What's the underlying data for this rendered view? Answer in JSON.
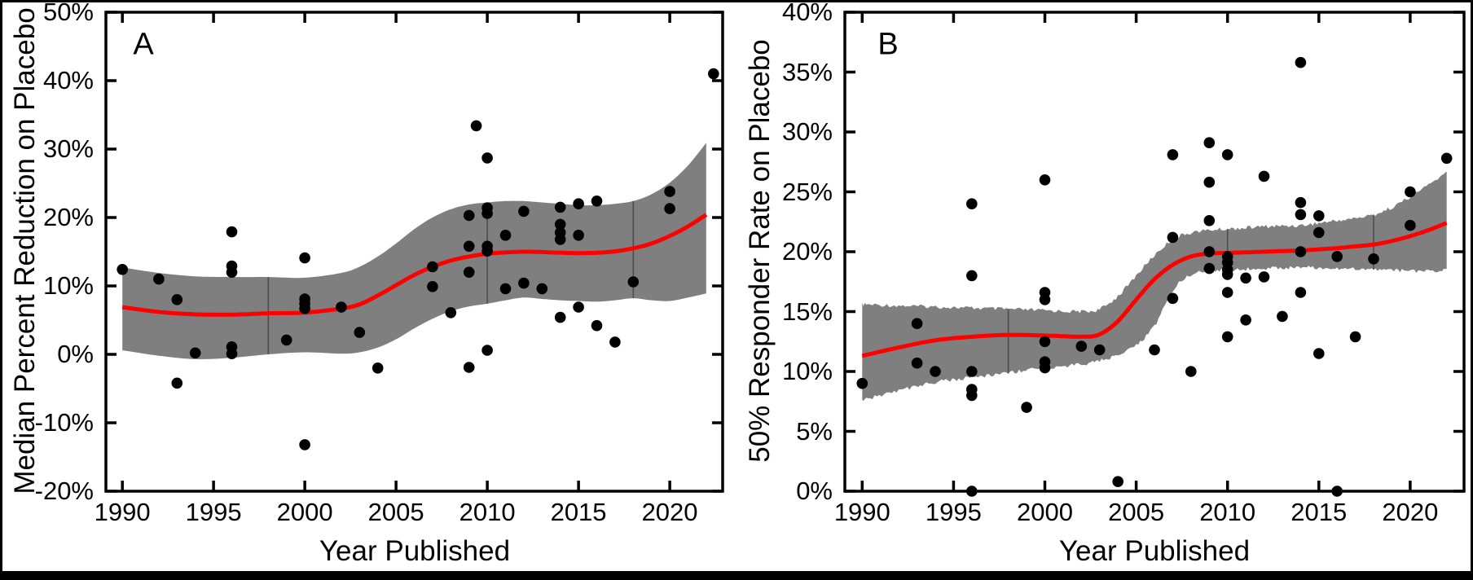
{
  "figure": {
    "background": "#ffffff",
    "frame_color": "#000000",
    "bottom_bar_color": "#000000"
  },
  "chart_data": [
    {
      "type": "scatter",
      "panel_label": "A",
      "xlabel": "Year Published",
      "ylabel": "Median Percent Reduction on Placebo",
      "xlim": [
        1989.1,
        2022.9
      ],
      "ylim": [
        -20,
        50
      ],
      "grid": false,
      "legend": "none",
      "xticks": [
        1990,
        1995,
        2000,
        2005,
        2010,
        2015,
        2020
      ],
      "xtick_labels": [
        "1990",
        "1995",
        "2000",
        "2005",
        "2010",
        "2015",
        "2020"
      ],
      "yticks": [
        -20,
        -10,
        0,
        10,
        20,
        30,
        40,
        50
      ],
      "ytick_labels": [
        "-20%",
        "-10%",
        "0%",
        "10%",
        "20%",
        "30%",
        "40%",
        "50%"
      ],
      "colors": {
        "points": "#000000",
        "trend": "#ff0000",
        "band": "#7f7f7f",
        "knots": "#4d4d4d"
      },
      "points": [
        [
          1990,
          12.4
        ],
        [
          1992,
          11.0
        ],
        [
          1993,
          8.0
        ],
        [
          1993,
          -4.2
        ],
        [
          1994,
          0.2
        ],
        [
          1996,
          17.9
        ],
        [
          1996,
          12.9
        ],
        [
          1996,
          12.0
        ],
        [
          1996,
          1.1
        ],
        [
          1996,
          0.1
        ],
        [
          1999,
          2.1
        ],
        [
          2000,
          14.1
        ],
        [
          2000,
          8.1
        ],
        [
          2000,
          7.4
        ],
        [
          2000,
          6.7
        ],
        [
          2000,
          -13.2
        ],
        [
          2002,
          6.9
        ],
        [
          2003,
          3.2
        ],
        [
          2004,
          -2.0
        ],
        [
          2007,
          12.8
        ],
        [
          2007,
          9.9
        ],
        [
          2008,
          6.1
        ],
        [
          2009.4,
          33.4
        ],
        [
          2009,
          20.3
        ],
        [
          2009,
          15.8
        ],
        [
          2009,
          12.0
        ],
        [
          2009,
          -1.9
        ],
        [
          2010,
          28.7
        ],
        [
          2010,
          21.4
        ],
        [
          2010,
          20.6
        ],
        [
          2010,
          15.8
        ],
        [
          2010,
          15.1
        ],
        [
          2010,
          0.6
        ],
        [
          2011,
          17.4
        ],
        [
          2011,
          9.6
        ],
        [
          2012,
          20.9
        ],
        [
          2012,
          10.4
        ],
        [
          2013,
          9.6
        ],
        [
          2014,
          21.5
        ],
        [
          2014,
          19.0
        ],
        [
          2014,
          17.8
        ],
        [
          2014,
          16.8
        ],
        [
          2014,
          5.4
        ],
        [
          2015,
          22.0
        ],
        [
          2015,
          17.4
        ],
        [
          2015,
          6.9
        ],
        [
          2016,
          22.4
        ],
        [
          2016,
          4.2
        ],
        [
          2017,
          1.8
        ],
        [
          2018,
          10.6
        ],
        [
          2020,
          23.8
        ],
        [
          2020,
          21.3
        ],
        [
          2022.4,
          41.0
        ]
      ],
      "trend": {
        "x": [
          1990,
          1992,
          1994,
          1996,
          1998,
          2000,
          2002,
          2003,
          2004,
          2005,
          2006,
          2007,
          2008,
          2009,
          2010,
          2011,
          2012,
          2013,
          2014,
          2015,
          2016,
          2017,
          2018,
          2019,
          2020,
          2021,
          2022
        ],
        "y": [
          6.9,
          6.2,
          5.85,
          5.8,
          6.0,
          6.1,
          6.7,
          7.3,
          8.6,
          10.1,
          11.6,
          12.8,
          13.7,
          14.3,
          14.7,
          14.9,
          15.0,
          14.95,
          14.85,
          14.8,
          14.85,
          15.05,
          15.5,
          16.2,
          17.3,
          18.7,
          20.4
        ]
      },
      "band": {
        "x": [
          1990,
          1992,
          1994,
          1996,
          1998,
          2000,
          2002,
          2003,
          2004,
          2005,
          2006,
          2007,
          2008,
          2009,
          2010,
          2011,
          2012,
          2013,
          2014,
          2015,
          2016,
          2017,
          2018,
          2019,
          2020,
          2021,
          2022
        ],
        "upper": [
          12.7,
          11.9,
          11.4,
          11.3,
          11.3,
          11.2,
          11.9,
          12.8,
          14.3,
          16.2,
          18.3,
          20.0,
          21.2,
          21.9,
          22.2,
          22.4,
          22.4,
          22.2,
          22.0,
          21.8,
          21.8,
          22.0,
          22.4,
          23.4,
          25.1,
          27.6,
          30.9
        ],
        "lower": [
          0.6,
          -0.2,
          -0.7,
          -0.5,
          0.0,
          0.3,
          0.1,
          0.3,
          1.0,
          2.2,
          3.8,
          5.2,
          6.3,
          7.0,
          7.4,
          7.9,
          8.3,
          8.1,
          7.9,
          7.8,
          7.7,
          7.9,
          8.2,
          7.9,
          7.8,
          8.3,
          8.9
        ],
        "ragged": false
      },
      "knot_lines": [
        1998,
        2010,
        2018
      ]
    },
    {
      "type": "scatter",
      "panel_label": "B",
      "xlabel": "Year Published",
      "ylabel": "50% Responder Rate on Placebo",
      "xlim": [
        1989.05,
        2022.95
      ],
      "ylim": [
        0,
        40
      ],
      "grid": false,
      "legend": "none",
      "xticks": [
        1990,
        1995,
        2000,
        2005,
        2010,
        2015,
        2020
      ],
      "xtick_labels": [
        "1990",
        "1995",
        "2000",
        "2005",
        "2010",
        "2015",
        "2020"
      ],
      "yticks": [
        0,
        5,
        10,
        15,
        20,
        25,
        30,
        35,
        40
      ],
      "ytick_labels": [
        "0%",
        "5%",
        "10%",
        "15%",
        "20%",
        "25%",
        "30%",
        "35%",
        "40%"
      ],
      "colors": {
        "points": "#000000",
        "trend": "#ff0000",
        "band": "#7f7f7f",
        "knots": "#4d4d4d"
      },
      "points": [
        [
          1990,
          9.0
        ],
        [
          1993,
          14.0
        ],
        [
          1993,
          10.7
        ],
        [
          1994,
          10.0
        ],
        [
          1996,
          24.0
        ],
        [
          1996,
          18.0
        ],
        [
          1996,
          10.0
        ],
        [
          1996,
          8.5
        ],
        [
          1996,
          8.0
        ],
        [
          1996,
          0.0
        ],
        [
          1999,
          7.0
        ],
        [
          2000,
          26.0
        ],
        [
          2000,
          16.6
        ],
        [
          2000,
          16.0
        ],
        [
          2000,
          12.5
        ],
        [
          2000,
          10.8
        ],
        [
          2000,
          10.3
        ],
        [
          2002,
          12.1
        ],
        [
          2003,
          11.8
        ],
        [
          2004,
          0.8
        ],
        [
          2006,
          11.8
        ],
        [
          2007,
          28.1
        ],
        [
          2007,
          21.2
        ],
        [
          2007,
          16.1
        ],
        [
          2008,
          10.0
        ],
        [
          2009,
          29.1
        ],
        [
          2009,
          25.8
        ],
        [
          2009,
          22.6
        ],
        [
          2009,
          20.0
        ],
        [
          2009,
          18.6
        ],
        [
          2010,
          28.1
        ],
        [
          2010,
          19.6
        ],
        [
          2010,
          19.1
        ],
        [
          2010,
          18.5
        ],
        [
          2010,
          18.1
        ],
        [
          2010,
          16.6
        ],
        [
          2010,
          12.9
        ],
        [
          2011,
          17.8
        ],
        [
          2011,
          14.3
        ],
        [
          2012,
          26.3
        ],
        [
          2012,
          17.9
        ],
        [
          2013,
          14.6
        ],
        [
          2014,
          35.8
        ],
        [
          2014,
          24.1
        ],
        [
          2014,
          23.1
        ],
        [
          2014,
          20.0
        ],
        [
          2014,
          16.6
        ],
        [
          2015,
          23.0
        ],
        [
          2015,
          21.6
        ],
        [
          2015,
          11.5
        ],
        [
          2016,
          19.6
        ],
        [
          2016,
          0.0
        ],
        [
          2017,
          12.9
        ],
        [
          2018,
          19.4
        ],
        [
          2020,
          25.0
        ],
        [
          2020,
          22.2
        ],
        [
          2022,
          27.8
        ]
      ],
      "trend": {
        "x": [
          1990,
          1992,
          1994,
          1996,
          1998,
          2000,
          2002,
          2003,
          2004,
          2005,
          2006,
          2007,
          2008,
          2009,
          2010,
          2011,
          2012,
          2013,
          2014,
          2015,
          2016,
          2017,
          2018,
          2019,
          2020,
          2021,
          2022
        ],
        "y": [
          11.3,
          12.0,
          12.6,
          12.9,
          13.05,
          13.0,
          12.9,
          13.1,
          14.2,
          16.0,
          17.7,
          18.9,
          19.6,
          19.85,
          19.9,
          19.95,
          20.0,
          20.05,
          20.1,
          20.2,
          20.3,
          20.45,
          20.6,
          20.9,
          21.3,
          21.8,
          22.4
        ]
      },
      "band": {
        "x": [
          1990,
          1992,
          1994,
          1996,
          1998,
          2000,
          2002,
          2003,
          2004,
          2005,
          2006,
          2007,
          2008,
          2009,
          2010,
          2011,
          2012,
          2013,
          2014,
          2015,
          2016,
          2017,
          2018,
          2019,
          2020,
          2021,
          2022
        ],
        "upper": [
          15.6,
          15.5,
          15.4,
          15.3,
          15.2,
          15.1,
          15.0,
          15.2,
          16.3,
          18.0,
          19.7,
          21.0,
          21.6,
          21.8,
          21.9,
          22.0,
          22.1,
          22.15,
          22.2,
          22.4,
          22.6,
          22.8,
          23.1,
          23.7,
          24.6,
          25.6,
          26.6
        ],
        "lower": [
          7.6,
          8.4,
          9.1,
          9.5,
          9.9,
          10.3,
          10.6,
          10.9,
          11.4,
          12.2,
          13.8,
          16.8,
          18.1,
          18.4,
          18.5,
          18.55,
          18.6,
          18.65,
          18.7,
          18.65,
          18.6,
          18.55,
          18.5,
          18.45,
          18.4,
          18.4,
          18.45
        ],
        "ragged": true
      },
      "knot_lines": [
        1998,
        2010,
        2018
      ]
    }
  ]
}
